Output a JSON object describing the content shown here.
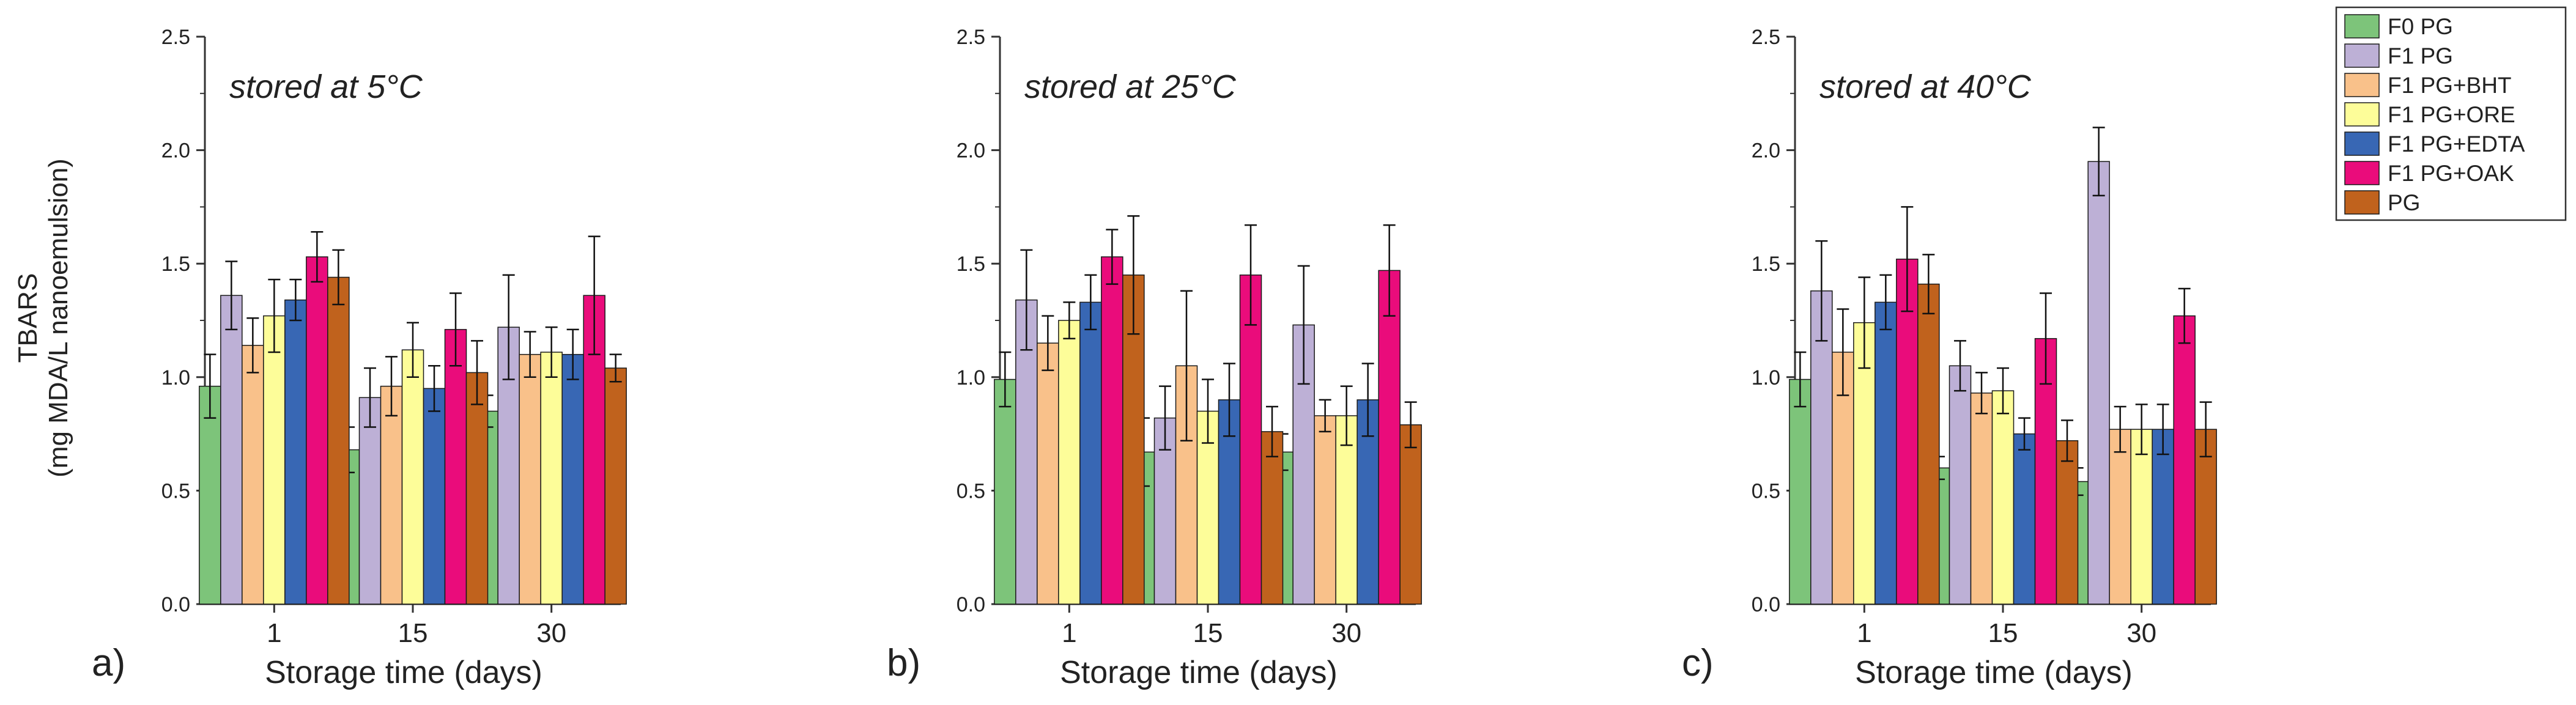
{
  "chart_data": {
    "type": "bar",
    "categories": [
      "1",
      "15",
      "30"
    ],
    "ylabel_line1": "TBARS",
    "ylabel_line2": "(mg MDA/L nanoemulsion)",
    "xlabel": "Storage time (days)",
    "ylim": [
      0,
      2.5
    ],
    "yticks": [
      "0.0",
      "0.5",
      "1.0",
      "1.5",
      "2.0",
      "2.5"
    ],
    "series": [
      {
        "name": "F0 PG",
        "color": "#7dc47a"
      },
      {
        "name": "F1 PG",
        "color": "#bdb0d6"
      },
      {
        "name": "F1 PG+BHT",
        "color": "#f9c18a"
      },
      {
        "name": "F1 PG+ORE",
        "color": "#fdfd99"
      },
      {
        "name": "F1 PG+EDTA",
        "color": "#3867b4"
      },
      {
        "name": "F1 PG+OAK",
        "color": "#ea0c7b"
      },
      {
        "name": "PG",
        "color": "#c0621d"
      }
    ],
    "panels": [
      {
        "letter": "a)",
        "annotation": "stored at 5°C",
        "values": [
          [
            0.96,
            0.68,
            0.85
          ],
          [
            1.36,
            0.91,
            1.22
          ],
          [
            1.14,
            0.96,
            1.1
          ],
          [
            1.27,
            1.12,
            1.11
          ],
          [
            1.34,
            0.95,
            1.1
          ],
          [
            1.53,
            1.21,
            1.36
          ],
          [
            1.44,
            1.02,
            1.04
          ]
        ],
        "errors": [
          [
            0.14,
            0.1,
            0.07
          ],
          [
            0.15,
            0.13,
            0.23
          ],
          [
            0.12,
            0.13,
            0.1
          ],
          [
            0.16,
            0.12,
            0.11
          ],
          [
            0.09,
            0.1,
            0.11
          ],
          [
            0.11,
            0.16,
            0.26
          ],
          [
            0.12,
            0.14,
            0.06
          ]
        ]
      },
      {
        "letter": "b)",
        "annotation": "stored at 25°C",
        "values": [
          [
            0.99,
            0.67,
            0.67
          ],
          [
            1.34,
            0.82,
            1.23
          ],
          [
            1.15,
            1.05,
            0.83
          ],
          [
            1.25,
            0.85,
            0.83
          ],
          [
            1.33,
            0.9,
            0.9
          ],
          [
            1.53,
            1.45,
            1.47
          ],
          [
            1.45,
            0.76,
            0.79
          ]
        ],
        "errors": [
          [
            0.12,
            0.15,
            0.08
          ],
          [
            0.22,
            0.14,
            0.26
          ],
          [
            0.12,
            0.33,
            0.07
          ],
          [
            0.08,
            0.14,
            0.13
          ],
          [
            0.12,
            0.16,
            0.16
          ],
          [
            0.12,
            0.22,
            0.2
          ],
          [
            0.26,
            0.11,
            0.1
          ]
        ]
      },
      {
        "letter": "c)",
        "annotation": "stored at 40°C",
        "values": [
          [
            0.99,
            0.6,
            0.54
          ],
          [
            1.38,
            1.05,
            1.95
          ],
          [
            1.11,
            0.93,
            0.77
          ],
          [
            1.24,
            0.94,
            0.77
          ],
          [
            1.33,
            0.75,
            0.77
          ],
          [
            1.52,
            1.17,
            1.27
          ],
          [
            1.41,
            0.72,
            0.77
          ]
        ],
        "errors": [
          [
            0.12,
            0.05,
            0.06
          ],
          [
            0.22,
            0.11,
            0.15
          ],
          [
            0.19,
            0.09,
            0.1
          ],
          [
            0.2,
            0.1,
            0.11
          ],
          [
            0.12,
            0.07,
            0.11
          ],
          [
            0.23,
            0.2,
            0.12
          ],
          [
            0.13,
            0.09,
            0.12
          ]
        ]
      }
    ],
    "legend_position": "top-right"
  }
}
